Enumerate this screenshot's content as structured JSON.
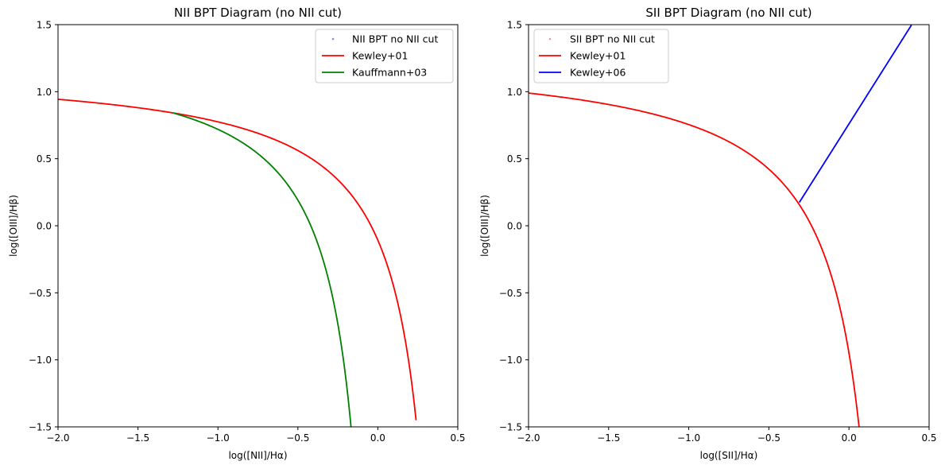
{
  "chart_data": [
    {
      "type": "line",
      "title": "NII BPT Diagram (no NII cut)",
      "xlabel": "log([NII]/Hα)",
      "ylabel": "log([OIII]/Hβ)",
      "xlim": [
        -2.0,
        0.5
      ],
      "ylim": [
        -1.5,
        1.5
      ],
      "xticks": [
        -2.0,
        -1.5,
        -1.0,
        -0.5,
        0.0,
        0.5
      ],
      "yticks": [
        -1.5,
        -1.0,
        -0.5,
        0.0,
        0.5,
        1.0,
        1.5
      ],
      "xtick_labels": [
        "−2.0",
        "−1.5",
        "−1.0",
        "−0.5",
        "0.0",
        "0.5"
      ],
      "ytick_labels": [
        "−1.5",
        "−1.0",
        "−0.5",
        "0.0",
        "0.5",
        "1.0",
        "1.5"
      ],
      "grid": false,
      "legend_position": "top-right",
      "legend": [
        {
          "label": "NII BPT no NII cut",
          "kind": "scatter",
          "color": "#8c8ccc"
        },
        {
          "label": "Kewley+01",
          "kind": "line",
          "color": "#ff0000"
        },
        {
          "label": "Kauffmann+03",
          "kind": "line",
          "color": "#008000"
        }
      ],
      "series": [
        {
          "name": "Kewley+01",
          "color": "#ff0000",
          "formula": "y = 0.61/(x - 0.47) + 1.19",
          "x": [
            -2.0,
            -1.5,
            -1.0,
            -0.5,
            -0.2,
            0.0,
            0.1,
            0.2,
            0.239
          ],
          "y": [
            0.943,
            0.88,
            0.775,
            0.561,
            0.28,
            -0.108,
            -0.459,
            -1.08,
            -1.5
          ]
        },
        {
          "name": "Kauffmann+03",
          "color": "#008000",
          "formula": "y = 0.61/(x - 0.05) + 1.3",
          "x": [
            -1.28,
            -1.0,
            -0.7,
            -0.5,
            -0.35,
            -0.25,
            -0.16
          ],
          "y": [
            0.841,
            0.719,
            0.487,
            0.191,
            -0.225,
            -0.733,
            -1.5
          ]
        }
      ]
    },
    {
      "type": "line",
      "title": "SII BPT Diagram (no NII cut)",
      "xlabel": "log([SII]/Hα)",
      "ylabel": "log([OIII]/Hβ)",
      "xlim": [
        -2.0,
        0.5
      ],
      "ylim": [
        -1.5,
        1.5
      ],
      "xticks": [
        -2.0,
        -1.5,
        -1.0,
        -0.5,
        0.0,
        0.5
      ],
      "yticks": [
        -1.5,
        -1.0,
        -0.5,
        0.0,
        0.5,
        1.0,
        1.5
      ],
      "xtick_labels": [
        "−2.0",
        "−1.5",
        "−1.0",
        "−0.5",
        "0.0",
        "0.5"
      ],
      "ytick_labels": [
        "−1.5",
        "−1.0",
        "−0.5",
        "0.0",
        "0.5",
        "1.0",
        "1.5"
      ],
      "grid": false,
      "legend_position": "top-left",
      "legend": [
        {
          "label": "SII BPT no NII cut",
          "kind": "scatter",
          "color": "#e89a9a"
        },
        {
          "label": "Kewley+01",
          "kind": "line",
          "color": "#ff0000"
        },
        {
          "label": "Kewley+06",
          "kind": "line",
          "color": "#0000ff"
        }
      ],
      "series": [
        {
          "name": "Kewley+01",
          "color": "#ff0000",
          "formula": "y = 0.72/(x - 0.32) + 1.30",
          "x": [
            -2.0,
            -1.5,
            -1.0,
            -0.5,
            -0.3,
            -0.1,
            0.0,
            0.064
          ],
          "y": [
            0.99,
            0.904,
            0.755,
            0.422,
            0.139,
            -0.414,
            -0.95,
            -1.5
          ]
        },
        {
          "name": "Kewley+06",
          "color": "#0000ff",
          "formula": "y = 1.89x + 0.76",
          "x": [
            -0.31,
            0.39
          ],
          "y": [
            0.174,
            1.497
          ]
        }
      ]
    }
  ]
}
